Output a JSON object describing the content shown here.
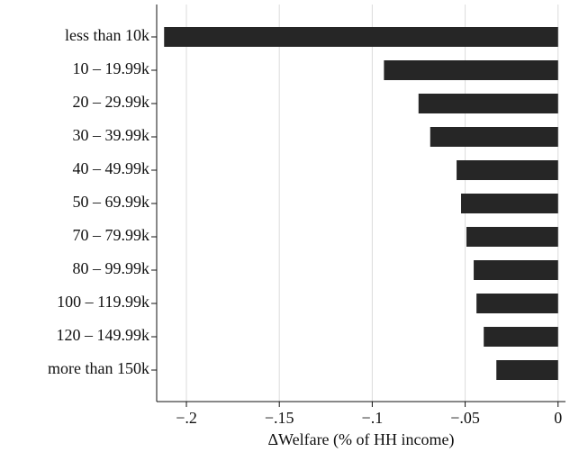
{
  "chart_data": {
    "type": "barh",
    "x_label": "ΔWelfare (% of HH income)",
    "categories": [
      "less than 10k",
      "10 – 19.99k",
      "20 – 29.99k",
      "30 – 39.99k",
      "40 – 49.99k",
      "50 – 69.99k",
      "70 – 79.99k",
      "80 – 99.99k",
      "100 – 119.99k",
      "120 – 149.99k",
      "more than 150k"
    ],
    "values": [
      -0.212,
      -0.0937,
      -0.0751,
      -0.0688,
      -0.0546,
      -0.0522,
      -0.0493,
      -0.0454,
      -0.0439,
      -0.04,
      -0.0332
    ],
    "color": "#262626",
    "xlim": [
      -0.216,
      0.004
    ],
    "xticks": [
      {
        "value": -0.2,
        "label": "−.2"
      },
      {
        "value": -0.15,
        "label": "−.15"
      },
      {
        "value": -0.1,
        "label": "−.1"
      },
      {
        "value": -0.05,
        "label": "−.05"
      },
      0
    ],
    "grid": true
  }
}
